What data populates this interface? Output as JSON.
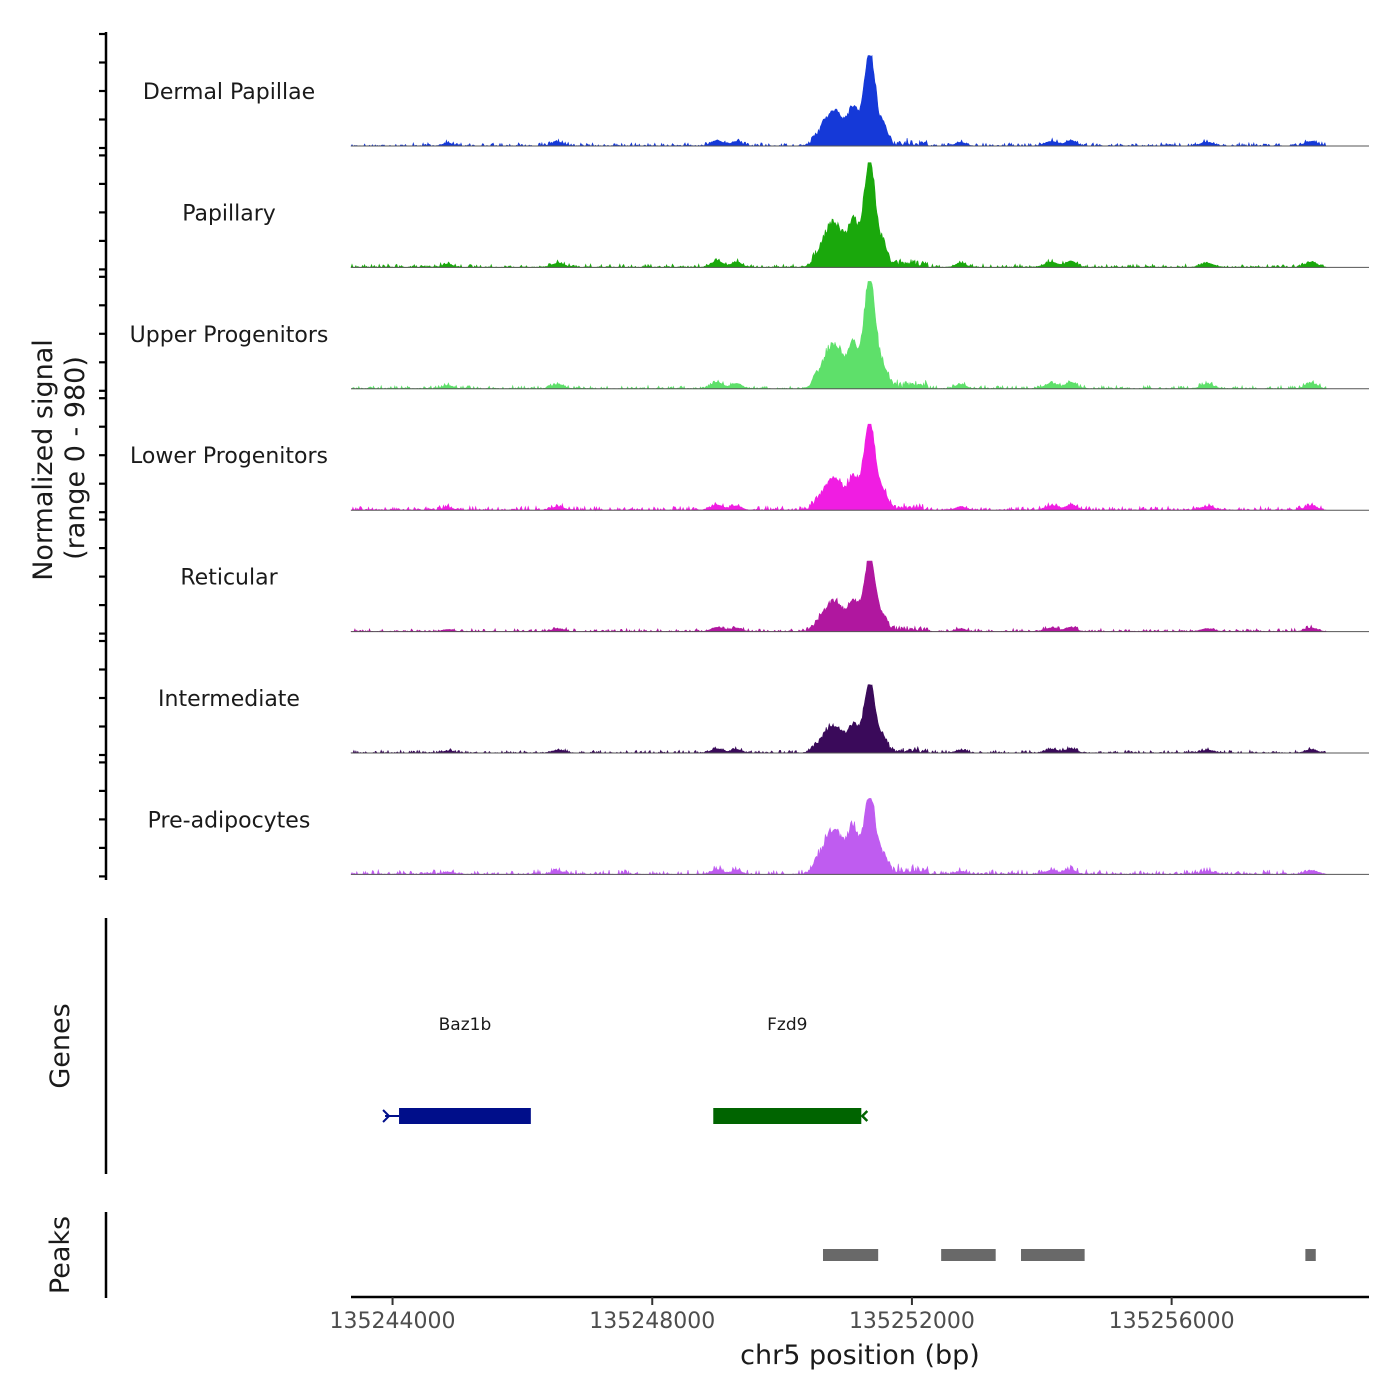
{
  "chart_data": {
    "type": "area",
    "title": "",
    "ylabel_line1": "Normalized signal",
    "ylabel_line2": "(range 0 - 980)",
    "xlabel": "chr5 position (bp)",
    "chromosome": "chr5",
    "x_range": [
      135243360,
      135259040
    ],
    "y_range": [
      0,
      980
    ],
    "x_ticks": [
      135244000,
      135248000,
      135252000,
      135256000
    ],
    "x_tick_labels": [
      "135244000",
      "135248000",
      "135252000",
      "135256000"
    ],
    "track_labels": {
      "genes": "Genes",
      "peaks": "Peaks"
    },
    "tracks": [
      {
        "name": "Dermal Papillae",
        "color": "#1539d8",
        "peak": 820,
        "shoulder": 0.24,
        "noise": 0.035
      },
      {
        "name": "Papillary",
        "color": "#1aa80c",
        "peak": 950,
        "shoulder": 0.26,
        "noise": 0.032
      },
      {
        "name": "Upper Progenitors",
        "color": "#5ee06a",
        "peak": 975,
        "shoulder": 0.25,
        "noise": 0.03
      },
      {
        "name": "Lower Progenitors",
        "color": "#f01de2",
        "peak": 780,
        "shoulder": 0.22,
        "noise": 0.045
      },
      {
        "name": "Reticular",
        "color": "#b0179f",
        "peak": 640,
        "shoulder": 0.26,
        "noise": 0.042
      },
      {
        "name": "Intermediate",
        "color": "#3a0a5a",
        "peak": 620,
        "shoulder": 0.24,
        "noise": 0.04
      },
      {
        "name": "Pre-adipocytes",
        "color": "#bf5cf0",
        "peak": 690,
        "shoulder": 0.36,
        "noise": 0.06
      }
    ],
    "signal_start": 135243360,
    "signal_end": 135258380,
    "main_peak_position": 135251350,
    "genes": [
      {
        "name": "Baz1b",
        "start": 135244100,
        "end": 135246130,
        "strand": "-",
        "color": "#000e8a"
      },
      {
        "name": "Fzd9",
        "start": 135248940,
        "end": 135251220,
        "strand": "+",
        "color": "#006400"
      }
    ],
    "peaks": [
      {
        "start": 135250630,
        "end": 135251480
      },
      {
        "start": 135252450,
        "end": 135253290
      },
      {
        "start": 135253680,
        "end": 135254660
      },
      {
        "start": 135258060,
        "end": 135258220
      }
    ],
    "peak_color": "#696969"
  }
}
